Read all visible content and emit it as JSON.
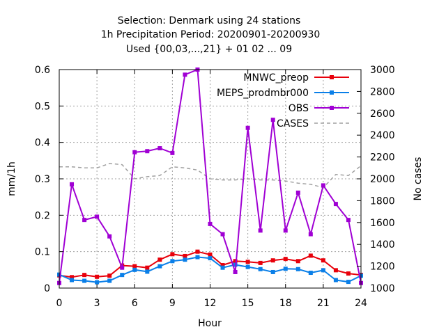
{
  "chart_data": {
    "type": "line",
    "title_lines": [
      "Selection: Denmark using    24 stations",
      "1h Precipitation    Period: 20200901-20200930",
      "Used {00,03,...,21} + 01 02 ... 09"
    ],
    "xlabel": "Hour",
    "ylabel": "mm/1h",
    "y2label": "No cases",
    "xlim": [
      0,
      24
    ],
    "ylim": [
      0,
      0.6
    ],
    "y2lim": [
      1000,
      3000
    ],
    "x_ticks": [
      0,
      3,
      6,
      9,
      12,
      15,
      18,
      21,
      24
    ],
    "y_ticks": [
      "0",
      "0.1",
      "0.2",
      "0.3",
      "0.4",
      "0.5",
      "0.6"
    ],
    "y2_ticks": [
      "1000",
      "1200",
      "1400",
      "1600",
      "1800",
      "2000",
      "2200",
      "2400",
      "2600",
      "2800",
      "3000"
    ],
    "grid": true,
    "legend_position": "top-right",
    "x": [
      0,
      1,
      2,
      3,
      4,
      5,
      6,
      7,
      8,
      9,
      10,
      11,
      12,
      13,
      14,
      15,
      16,
      17,
      18,
      19,
      20,
      21,
      22,
      23,
      24
    ],
    "series": [
      {
        "name": "MNWC_preop",
        "axis": "y1",
        "color": "#e8000b",
        "marker": "square",
        "dash": "",
        "values": [
          0.035,
          0.03,
          0.036,
          0.031,
          0.034,
          0.062,
          0.06,
          0.056,
          0.078,
          0.093,
          0.088,
          0.1,
          0.092,
          0.063,
          0.074,
          0.072,
          0.069,
          0.076,
          0.08,
          0.074,
          0.089,
          0.076,
          0.049,
          0.04,
          0.036
        ]
      },
      {
        "name": "MEPS_prodmbr000",
        "axis": "y1",
        "color": "#0a7fe8",
        "marker": "square",
        "dash": "",
        "values": [
          0.037,
          0.022,
          0.02,
          0.016,
          0.02,
          0.036,
          0.05,
          0.045,
          0.06,
          0.074,
          0.078,
          0.085,
          0.082,
          0.056,
          0.064,
          0.058,
          0.052,
          0.044,
          0.053,
          0.052,
          0.042,
          0.049,
          0.022,
          0.017,
          0.034
        ]
      },
      {
        "name": "OBS",
        "axis": "y1",
        "color": "#a000d4",
        "marker": "square",
        "dash": "",
        "values": [
          0.014,
          0.285,
          0.187,
          0.196,
          0.142,
          0.056,
          0.373,
          0.376,
          0.384,
          0.371,
          0.586,
          0.6,
          0.176,
          0.148,
          0.044,
          0.44,
          0.158,
          0.462,
          0.158,
          0.262,
          0.148,
          0.282,
          0.231,
          0.187,
          0.014
        ]
      },
      {
        "name": "CASES",
        "axis": "y2",
        "color": "#a0a0a0",
        "marker": "none",
        "dash": "5,4",
        "values": [
          2110,
          2110,
          2100,
          2100,
          2140,
          2130,
          2000,
          2020,
          2030,
          2110,
          2100,
          2080,
          2000,
          1990,
          1990,
          2000,
          1990,
          1990,
          1980,
          1960,
          1950,
          1920,
          2040,
          2030,
          2120
        ]
      }
    ]
  }
}
